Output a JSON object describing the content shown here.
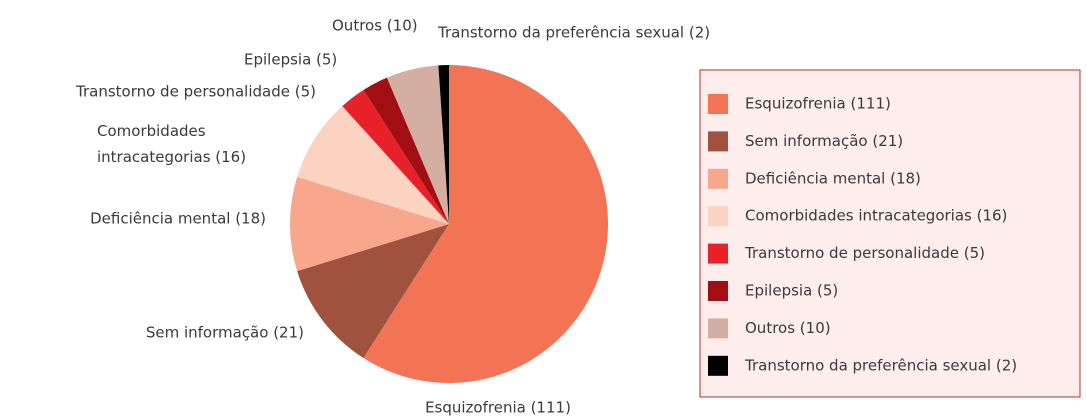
{
  "chart_data": {
    "type": "pie",
    "categories": [
      "Esquizofrenia (111)",
      "Sem informação (21)",
      "Deficiência mental (18)",
      "Comorbidades intracategorias (16)",
      "Transtorno de personalidade (5)",
      "Epilepsia (5)",
      "Outros (10)",
      "Transtorno da preferência sexual (2)"
    ],
    "values": [
      111,
      21,
      18,
      16,
      5,
      5,
      10,
      2
    ],
    "colors": [
      "#f37455",
      "#a0523e",
      "#f8a68c",
      "#fcd2c0",
      "#e8202a",
      "#a10e14",
      "#d4aea2",
      "#000000"
    ],
    "legend": "right"
  }
}
